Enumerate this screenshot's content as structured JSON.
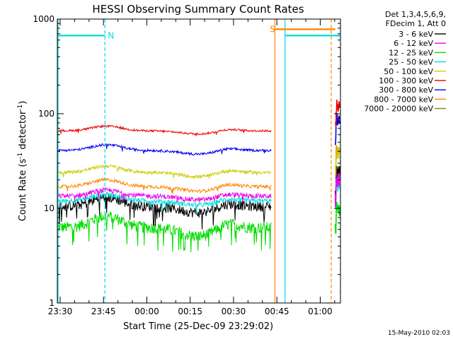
{
  "chart_data": {
    "type": "line",
    "title": "HESSI Observing Summary Count Rates",
    "xlabel": "Start Time (25-Dec-09 23:29:02)",
    "ylabel_main": "Count Rate (s",
    "ylabel_sup1": "-1",
    "ylabel_mid": " detector",
    "ylabel_sup2": "-1",
    "ylabel_end": ")",
    "yscale": "log",
    "ylim": [
      1,
      1000
    ],
    "x_range_minutes": [
      -0.97,
      97.0
    ],
    "x_ticks": [
      {
        "label": "23:30",
        "min": 0
      },
      {
        "label": "23:45",
        "min": 15
      },
      {
        "label": "00:00",
        "min": 30
      },
      {
        "label": "00:15",
        "min": 45
      },
      {
        "label": "00:30",
        "min": 60
      },
      {
        "label": "00:45",
        "min": 75
      },
      {
        "label": "01:00",
        "min": 90
      }
    ],
    "y_ticks": [
      {
        "label": "1",
        "value": 1
      },
      {
        "label": "10",
        "value": 10
      },
      {
        "label": "100",
        "value": 100
      },
      {
        "label": "1000",
        "value": 1000
      }
    ],
    "legend_header": [
      "Det 1,3,4,5,6,9,",
      "FDecim 1, Att 0"
    ],
    "series": [
      {
        "name": "3 - 6 keV",
        "color": "#000000",
        "level": 10.5,
        "amp": 2.5,
        "noise": 0.12,
        "after": 24
      },
      {
        "name": "6 - 12 keV",
        "color": "#ee00ee",
        "level": 13.5,
        "amp": 2.0,
        "noise": 0.06,
        "after": 20
      },
      {
        "name": "12 - 25 keV",
        "color": "#00dd00",
        "level": 6.3,
        "amp": 2.0,
        "noise": 0.14,
        "after": 10
      },
      {
        "name": "25 - 50 keV",
        "color": "#00dddd",
        "level": 12.0,
        "amp": 2.0,
        "noise": 0.06,
        "after": 18
      },
      {
        "name": "50 - 100 keV",
        "color": "#cccc00",
        "level": 24.0,
        "amp": 4.0,
        "noise": 0.04,
        "after": 40
      },
      {
        "name": "100 - 300 keV",
        "color": "#ee0000",
        "level": 66.0,
        "amp": 8.0,
        "noise": 0.025,
        "after": 120
      },
      {
        "name": "300 - 800 keV",
        "color": "#0000ee",
        "level": 41.0,
        "amp": 6.0,
        "noise": 0.03,
        "after": 90
      },
      {
        "name": "800 - 7000 keV",
        "color": "#ff8800",
        "level": 17.0,
        "amp": 3.0,
        "noise": 0.04,
        "after": 42
      },
      {
        "name": "7000 - 20000 keV",
        "color": "#888800",
        "level": 18.0,
        "amp": 1.0,
        "noise": 0.02,
        "after": 22
      }
    ],
    "flags": [
      {
        "label": "N",
        "color": "#00dddd",
        "bar_value": 670,
        "start_min": -0.97,
        "end_min": 15.5
      },
      {
        "label": "S",
        "color": "#ff8800",
        "bar_value": 780,
        "start_min": 74.5,
        "end_min": 95.2
      },
      {
        "label": "",
        "color": "#00dddd",
        "bar_value": 670,
        "start_min": 78.0,
        "end_min": 97.0
      }
    ],
    "events": [
      {
        "type": "saa_start",
        "min": 74.3,
        "color": "#ff8800"
      },
      {
        "type": "night_start",
        "min": 77.8,
        "color": "#00dddd"
      },
      {
        "type": "saa_end",
        "min": 93.8,
        "color": "#ff8800"
      },
      {
        "type": "night_end",
        "min": 97.0,
        "color": "#00dddd"
      }
    ],
    "data_gap": [
      73.0,
      95.2
    ],
    "timestamp": "15-May-2010 02:03"
  }
}
